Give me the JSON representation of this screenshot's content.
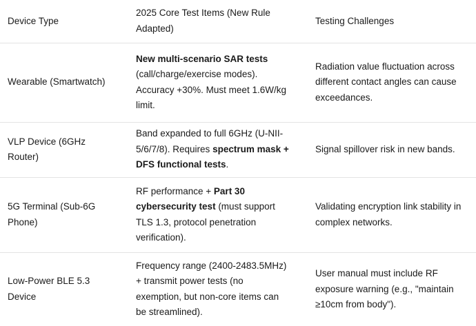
{
  "table": {
    "headers": [
      "Device Type",
      "2025 Core Test Items (New Rule Adapted)",
      "Testing Challenges"
    ],
    "rows": [
      [
        [
          {
            "text": "Wearable (Smartwatch)",
            "bold": false
          }
        ],
        [
          {
            "text": "New multi-scenario SAR tests",
            "bold": true
          },
          {
            "text": " (call/charge/exercise modes). Accuracy +30%. Must meet 1.6W/kg limit.",
            "bold": false
          }
        ],
        [
          {
            "text": "Radiation value fluctuation across different contact angles can cause exceedances.",
            "bold": false
          }
        ]
      ],
      [
        [
          {
            "text": "VLP Device (6GHz Router)",
            "bold": false
          }
        ],
        [
          {
            "text": "Band expanded to full 6GHz (U-NII-5/6/7/8). Requires ",
            "bold": false
          },
          {
            "text": "spectrum mask + DFS functional tests",
            "bold": true
          },
          {
            "text": ".",
            "bold": false
          }
        ],
        [
          {
            "text": "Signal spillover risk in new bands.",
            "bold": false
          }
        ]
      ],
      [
        [
          {
            "text": "5G Terminal (Sub-6G Phone)",
            "bold": false
          }
        ],
        [
          {
            "text": "RF performance + ",
            "bold": false
          },
          {
            "text": "Part 30 cybersecurity test",
            "bold": true
          },
          {
            "text": " (must support TLS 1.3, protocol penetration verification).",
            "bold": false
          }
        ],
        [
          {
            "text": "Validating encryption link stability in complex networks.",
            "bold": false
          }
        ]
      ],
      [
        [
          {
            "text": "Low-Power BLE 5.3 Device",
            "bold": false
          }
        ],
        [
          {
            "text": "Frequency range (2400-2483.5MHz) + transmit power tests (no exemption, but non-core items can be streamlined).",
            "bold": false
          }
        ],
        [
          {
            "text": "User manual must include RF exposure warning (e.g., \"maintain ≥10cm from body\").",
            "bold": false
          }
        ]
      ]
    ]
  }
}
